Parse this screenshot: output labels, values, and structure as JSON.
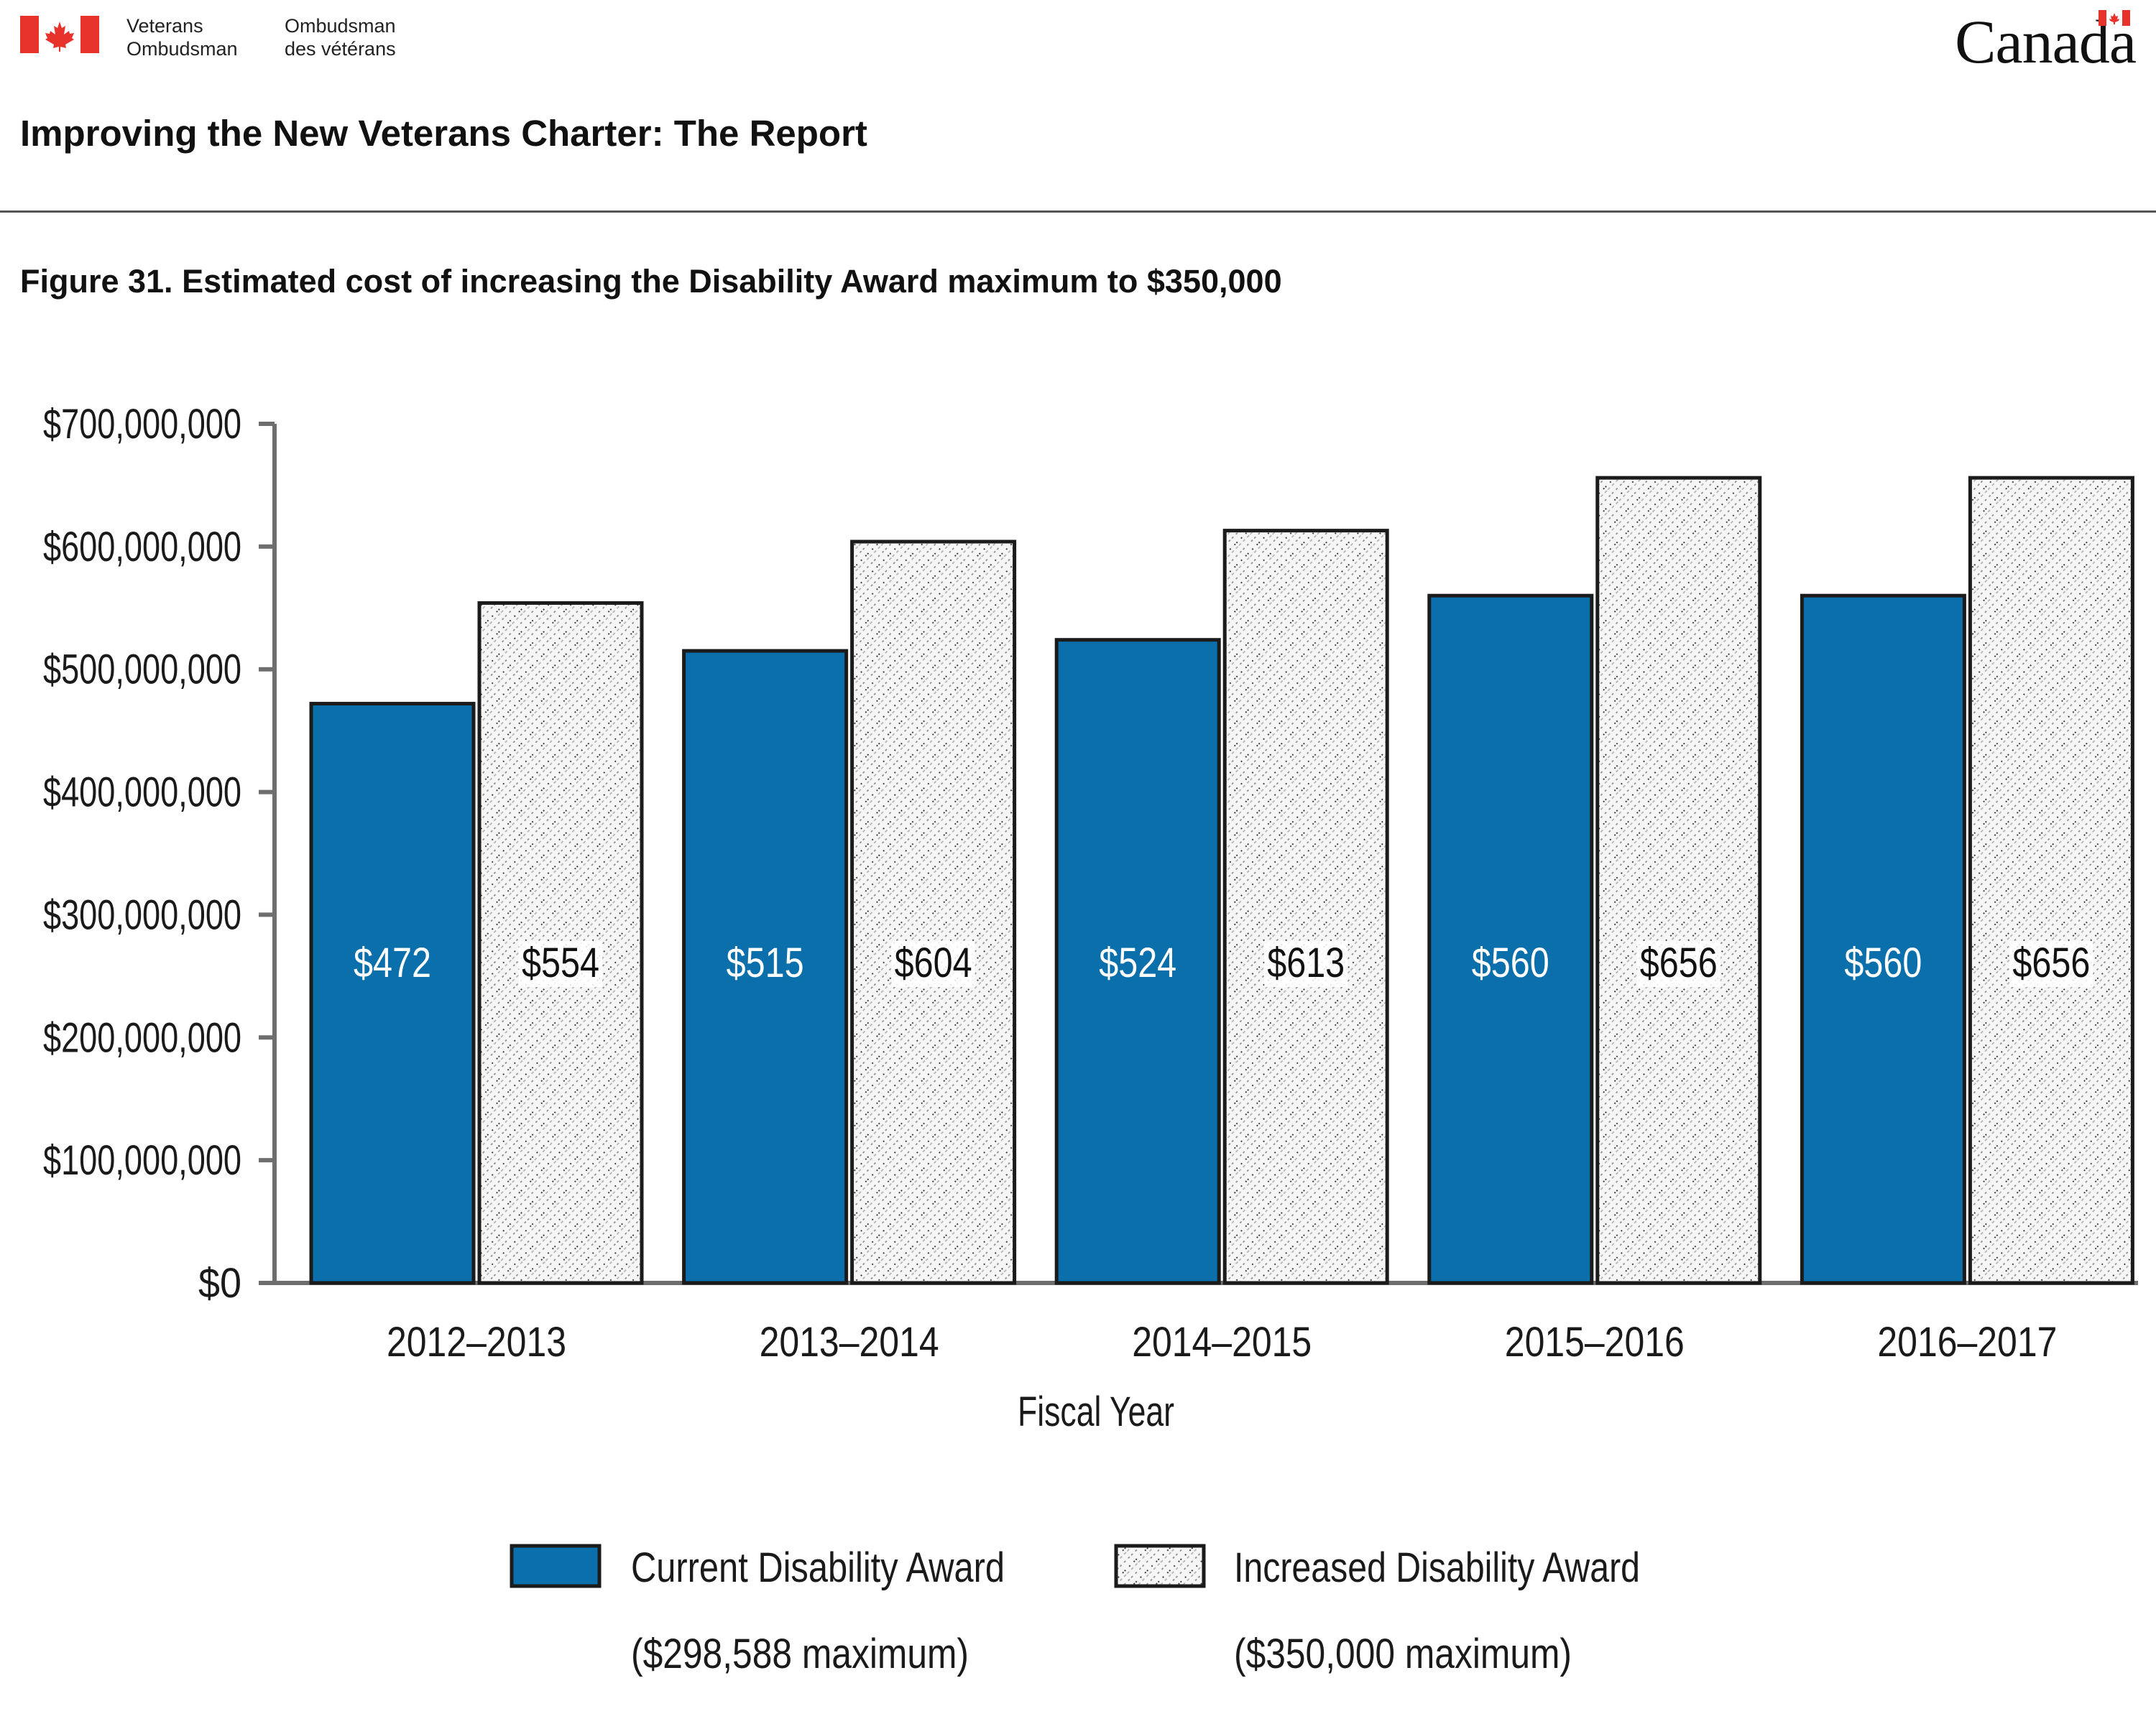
{
  "header": {
    "org_en_line1": "Veterans",
    "org_en_line2": "Ombudsman",
    "org_fr_line1": "Ombudsman",
    "org_fr_line2": "des vétérans",
    "wordmark": "Canada",
    "flag_icon": "canada-flag-icon"
  },
  "report_title": "Improving the New Veterans Charter: The Report",
  "figure_title": "Figure 31. Estimated cost of increasing the Disability Award maximum to $350,000",
  "colors": {
    "current": "#0b6fac",
    "increased": "#f4f4f4",
    "flag_red": "#e8322c",
    "axis": "#6e6e6e"
  },
  "chart_data": {
    "type": "bar",
    "categories": [
      "2012–2013",
      "2013–2014",
      "2014–2015",
      "2015–2016",
      "2016–2017"
    ],
    "series": [
      {
        "name": "Current Disability Award",
        "name_line2": "($298,588 maximum)",
        "values": [
          472000000,
          515000000,
          524000000,
          560000000,
          560000000
        ],
        "labels": [
          "$472",
          "$515",
          "$524",
          "$560",
          "$560"
        ]
      },
      {
        "name": "Increased Disability Award",
        "name_line2": "($350,000 maximum)",
        "values": [
          554000000,
          604000000,
          613000000,
          656000000,
          656000000
        ],
        "labels": [
          "$554",
          "$604",
          "$613",
          "$656",
          "$656"
        ]
      }
    ],
    "xlabel": "Fiscal Year",
    "ylabel": "",
    "ylim": [
      0,
      700000000
    ],
    "yticks": [
      0,
      100000000,
      200000000,
      300000000,
      400000000,
      500000000,
      600000000,
      700000000
    ],
    "ytick_labels": [
      "$0",
      "$100,000,000",
      "$200,000,000",
      "$300,000,000",
      "$400,000,000",
      "$500,000,000",
      "$600,000,000",
      "$700,000,000"
    ],
    "grid": false,
    "legend_position": "bottom"
  }
}
